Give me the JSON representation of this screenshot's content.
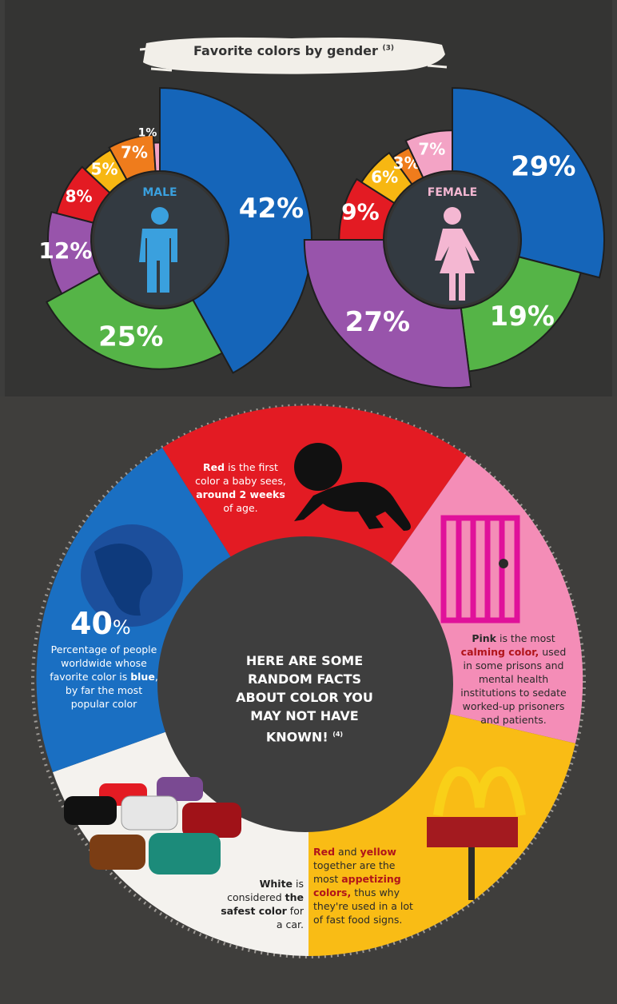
{
  "title": "Favorite colors by gender",
  "title_ref": "(3)",
  "chart_data": [
    {
      "type": "pie",
      "center_label": "MALE",
      "slices": [
        {
          "value": 42,
          "label": "42%",
          "color": "#1565b9"
        },
        {
          "value": 25,
          "label": "25%",
          "color": "#55b447"
        },
        {
          "value": 12,
          "label": "12%",
          "color": "#9854ab"
        },
        {
          "value": 8,
          "label": "8%",
          "color": "#e31b23"
        },
        {
          "value": 5,
          "label": "5%",
          "color": "#f7b712"
        },
        {
          "value": 7,
          "label": "7%",
          "color": "#ef7c1c"
        },
        {
          "value": 1,
          "label": "1%",
          "color": "#f3a3c5"
        }
      ]
    },
    {
      "type": "pie",
      "center_label": "FEMALE",
      "slices": [
        {
          "value": 29,
          "label": "29%",
          "color": "#1565b9"
        },
        {
          "value": 19,
          "label": "19%",
          "color": "#55b447"
        },
        {
          "value": 27,
          "label": "27%",
          "color": "#9854ab"
        },
        {
          "value": 9,
          "label": "9%",
          "color": "#e31b23"
        },
        {
          "value": 6,
          "label": "6%",
          "color": "#f7b712"
        },
        {
          "value": 3,
          "label": "3%",
          "color": "#ef7c1c"
        },
        {
          "value": 7,
          "label": "7%",
          "color": "#f3a3c5"
        }
      ]
    }
  ],
  "facts": {
    "center": {
      "text": "HERE ARE SOME RANDOM FACTS ABOUT COLOR YOU MAY NOT HAVE KNOWN!",
      "ref": "(4)"
    },
    "red": {
      "b1": "Red",
      "t1": " is the first color a baby sees, ",
      "b2": "around 2 weeks",
      "t2": " of age."
    },
    "blue": {
      "stat": "40",
      "unit": "%",
      "t1": "Percentage of people worldwide whose favorite color is ",
      "b1": "blue",
      "t2": ", by far the most popular color"
    },
    "pink": {
      "b1": "Pink",
      "t1": " is the most ",
      "b2": "calming color,",
      "t2": " used in some prisons and mental health institutions to sedate worked-up prisoners and patients."
    },
    "yellow": {
      "b1": "Red",
      "t1": " and ",
      "b2": "yellow",
      "t2": " together are the most ",
      "b3": "appetizing colors,",
      "t3": " thus why they're used in a lot of fast food signs."
    },
    "white": {
      "b1": "White",
      "t1": " is considered ",
      "b2": "the safest color",
      "t2": " for a car."
    }
  },
  "colors": {
    "red": "#e31b23",
    "pink": "#f48db7",
    "yellow": "#f9bc15",
    "white": "#f4f2ee",
    "blue": "#1a6fc2",
    "center": "#3e3e3e"
  }
}
